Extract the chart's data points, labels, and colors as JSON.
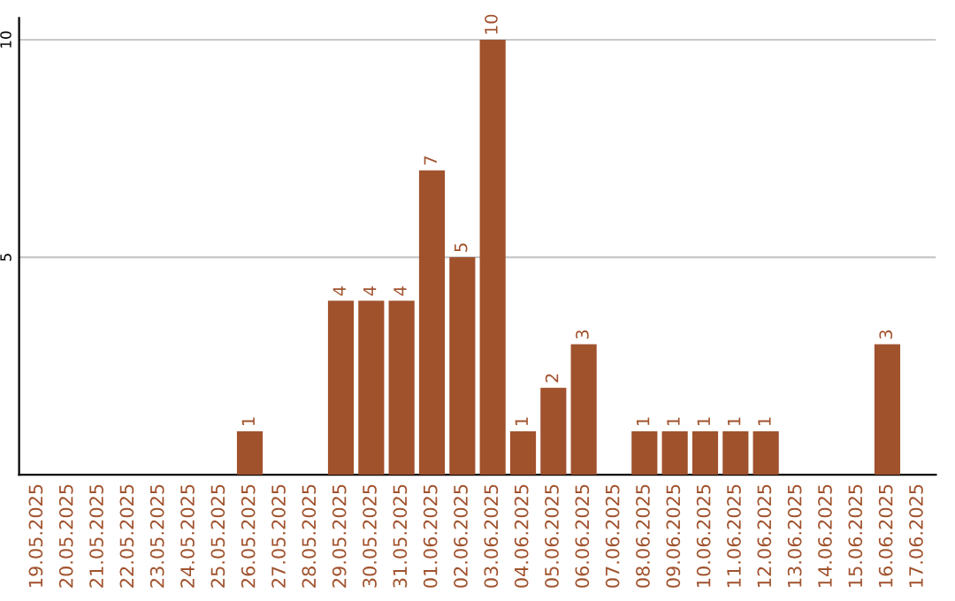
{
  "chart_data": {
    "type": "bar",
    "categories": [
      "19.05.2025",
      "20.05.2025",
      "21.05.2025",
      "22.05.2025",
      "23.05.2025",
      "24.05.2025",
      "25.05.2025",
      "26.05.2025",
      "27.05.2025",
      "28.05.2025",
      "29.05.2025",
      "30.05.2025",
      "31.05.2025",
      "01.06.2025",
      "02.06.2025",
      "03.06.2025",
      "04.06.2025",
      "05.06.2025",
      "06.06.2025",
      "07.06.2025",
      "08.06.2025",
      "09.06.2025",
      "10.06.2025",
      "11.06.2025",
      "12.06.2025",
      "13.06.2025",
      "14.06.2025",
      "15.06.2025",
      "16.06.2025",
      "17.06.2025"
    ],
    "values": [
      0,
      0,
      0,
      0,
      0,
      0,
      0,
      1,
      0,
      0,
      4,
      4,
      4,
      7,
      5,
      10,
      1,
      2,
      3,
      0,
      1,
      1,
      1,
      1,
      1,
      0,
      0,
      0,
      3,
      0
    ],
    "value_labels": [
      null,
      null,
      null,
      null,
      null,
      null,
      null,
      "1",
      null,
      null,
      "4",
      "4",
      "4",
      "7",
      "5",
      "10",
      "1",
      "2",
      "3",
      null,
      "1",
      "1",
      "1",
      "1",
      "1",
      null,
      null,
      null,
      "3",
      null
    ],
    "color": "#a0522d",
    "ylim": [
      0,
      10.5
    ],
    "yticks": [
      5,
      10
    ],
    "grid": "y"
  }
}
